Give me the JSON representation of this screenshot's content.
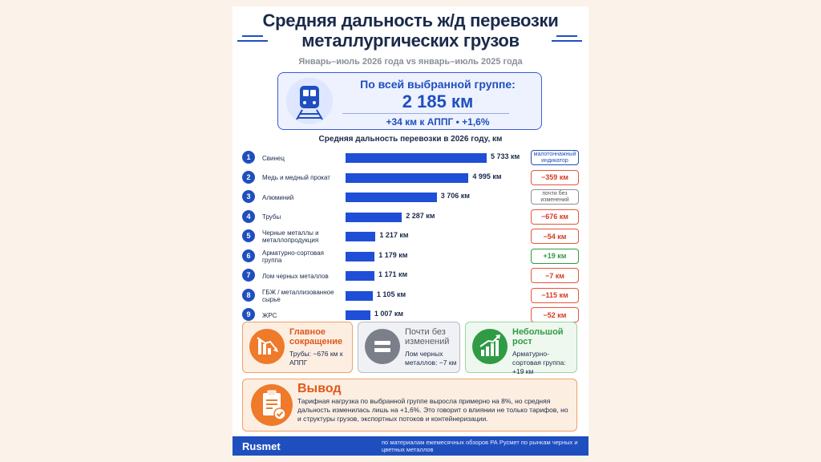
{
  "header": {
    "title_line1": "Средняя дальность ж/д перевозки",
    "title_line2": "металлургических грузов",
    "subtitle": "Январь–июль 2026 года vs январь–июль 2025 года"
  },
  "summary": {
    "label": "По всей выбранной группе:",
    "value": "2 185 км",
    "change": "+34 км к АППГ  •  +1,6%",
    "icon": "train-icon"
  },
  "chart_data": {
    "type": "bar",
    "title": "Средняя дальность перевозки в 2026 году, км",
    "categories": [
      "Свинец",
      "Медь и медный прокат",
      "Алюминий",
      "Трубы",
      "Черные металлы и металлопродукция",
      "Арматурно-сортовая группа",
      "Лом черных металлов",
      "ГБЖ / металлизованное сырье",
      "ЖРС"
    ],
    "values": [
      5733,
      4995,
      3706,
      2287,
      1217,
      1179,
      1171,
      1105,
      1007
    ],
    "value_labels": [
      "5 733 км",
      "4 995 км",
      "3 706 км",
      "2 287 км",
      "1 217 км",
      "1 179 км",
      "1 171 км",
      "1 105 км",
      "1 007 км"
    ],
    "ranks": [
      "1",
      "2",
      "3",
      "4",
      "5",
      "6",
      "7",
      "8",
      "9"
    ],
    "changes": [
      "малотоннажный индикатор",
      "−359 км",
      "почти без изменений",
      "−676 км",
      "−54 км",
      "+19 км",
      "−7 км",
      "−115 км",
      "−52 км"
    ],
    "change_types": [
      "info",
      "neg",
      "neutral",
      "neg",
      "neg",
      "pos",
      "neg",
      "neg",
      "neg"
    ],
    "bar_color": "#1f4fd6"
  },
  "highlights": [
    {
      "title": "Главное сокращение",
      "text": "Трубы: −676 км к АППГ",
      "icon": "trend-down-icon",
      "color": "#ee7a2a"
    },
    {
      "title": "Почти без изменений",
      "text": "Лом черных металлов: −7 км",
      "icon": "equals-icon",
      "color": "#7a7f8a"
    },
    {
      "title": "Небольшой рост",
      "text": "Арматурно-сортовая группа: +19 км",
      "icon": "trend-up-icon",
      "color": "#2f9b45"
    }
  ],
  "conclusion": {
    "title": "Вывод",
    "text": "Тарифная нагрузка по выбранной группе выросла примерно на 8%, но средняя дальность изменилась лишь на +1,6%. Это говорит о влиянии не только тарифов, но и структуры грузов, экспортных потоков и контейнеризации.",
    "icon": "clipboard-check-icon"
  },
  "footer": {
    "logo": "Rusmet",
    "source": "по материалам ежемесячных обзоров РА Русмет по рынкам черных и цветных металлов"
  }
}
